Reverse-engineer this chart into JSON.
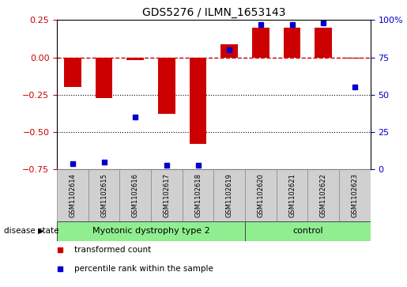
{
  "title": "GDS5276 / ILMN_1653143",
  "samples": [
    "GSM1102614",
    "GSM1102615",
    "GSM1102616",
    "GSM1102617",
    "GSM1102618",
    "GSM1102619",
    "GSM1102620",
    "GSM1102621",
    "GSM1102622",
    "GSM1102623"
  ],
  "red_bars": [
    -0.2,
    -0.27,
    -0.02,
    -0.38,
    -0.58,
    0.09,
    0.2,
    0.2,
    0.2,
    -0.01
  ],
  "blue_dots_pct": [
    4,
    5,
    35,
    3,
    3,
    80,
    97,
    97,
    98,
    55
  ],
  "ylim_left": [
    -0.75,
    0.25
  ],
  "ylim_right": [
    0,
    100
  ],
  "yticks_left": [
    -0.75,
    -0.5,
    -0.25,
    0,
    0.25
  ],
  "yticks_right": [
    0,
    25,
    50,
    75,
    100
  ],
  "ytick_labels_right": [
    "0",
    "25",
    "50",
    "75",
    "100%"
  ],
  "dotted_lines": [
    -0.25,
    -0.5
  ],
  "disease_groups": [
    {
      "label": "Myotonic dystrophy type 2",
      "start": 0,
      "end": 6,
      "color": "#90EE90"
    },
    {
      "label": "control",
      "start": 6,
      "end": 10,
      "color": "#90EE90"
    }
  ],
  "red_color": "#cc0000",
  "blue_color": "#0000cc",
  "bar_width": 0.55,
  "legend_items": [
    {
      "label": "transformed count",
      "color": "#cc0000"
    },
    {
      "label": "percentile rank within the sample",
      "color": "#0000cc"
    }
  ],
  "disease_state_label": "disease state",
  "bg_color": "#ffffff",
  "plot_bg": "#ffffff",
  "tick_color_left": "#cc0000",
  "tick_color_right": "#0000cc",
  "label_box_color": "#d0d0d0",
  "n_disease": 6,
  "n_control": 4
}
